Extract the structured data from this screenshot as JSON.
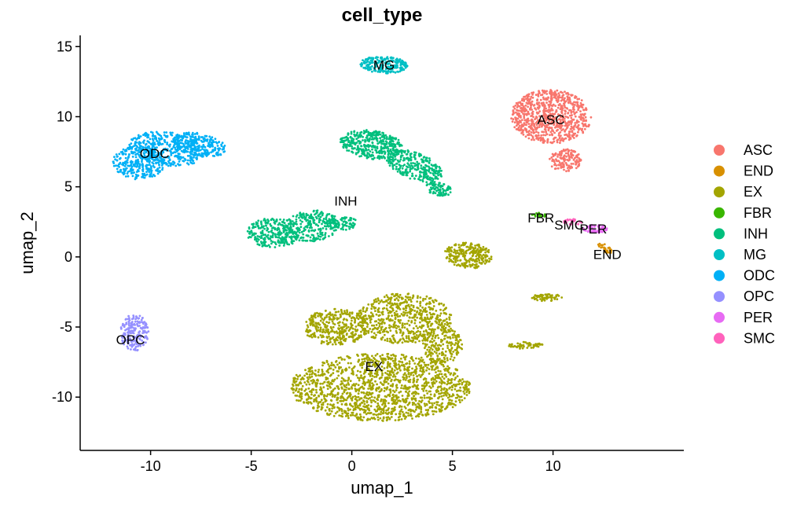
{
  "chart_data": {
    "type": "scatter",
    "title": "cell_type",
    "xlabel": "umap_1",
    "ylabel": "umap_2",
    "xlim": [
      -13.5,
      16.5
    ],
    "ylim": [
      -13.8,
      15.8
    ],
    "xticks": [
      -10,
      -5,
      0,
      5,
      10
    ],
    "yticks": [
      15,
      10,
      5,
      0,
      -5,
      -10
    ],
    "xtick_labels": [
      "-10",
      "-5",
      "0",
      "5",
      "10"
    ],
    "ytick_labels": [
      "15",
      "10",
      "5",
      "0",
      "-5",
      "-10"
    ],
    "grid": false,
    "legend_position": "right",
    "legend": [
      {
        "name": "ASC",
        "color": "#F8766D"
      },
      {
        "name": "END",
        "color": "#D89000"
      },
      {
        "name": "EX",
        "color": "#A3A500"
      },
      {
        "name": "FBR",
        "color": "#39B600"
      },
      {
        "name": "INH",
        "color": "#00BF7D"
      },
      {
        "name": "MG",
        "color": "#00BFC4"
      },
      {
        "name": "ODC",
        "color": "#00B0F6"
      },
      {
        "name": "OPC",
        "color": "#9590FF"
      },
      {
        "name": "PER",
        "color": "#E76BF3"
      },
      {
        "name": "SMC",
        "color": "#FF62BC"
      }
    ],
    "clusters": [
      {
        "name": "ASC",
        "label": {
          "x": 9.9,
          "y": 9.8
        },
        "blobs": [
          {
            "cx": 9.9,
            "cy": 10.0,
            "rx": 2.0,
            "ry": 1.9,
            "rot": -15,
            "n": 800
          },
          {
            "cx": 10.6,
            "cy": 6.9,
            "rx": 0.8,
            "ry": 0.8,
            "rot": -35,
            "n": 150
          }
        ]
      },
      {
        "name": "MG",
        "label": {
          "x": 1.6,
          "y": 13.7
        },
        "blobs": [
          {
            "cx": 1.6,
            "cy": 13.7,
            "rx": 1.2,
            "ry": 0.6,
            "rot": -5,
            "n": 220
          }
        ]
      },
      {
        "name": "ODC",
        "label": {
          "x": -9.8,
          "y": 7.4
        },
        "blobs": [
          {
            "cx": -10.6,
            "cy": 6.7,
            "rx": 1.3,
            "ry": 1.2,
            "rot": 0,
            "n": 300
          },
          {
            "cx": -9.2,
            "cy": 7.7,
            "rx": 1.9,
            "ry": 1.2,
            "rot": -15,
            "n": 380
          },
          {
            "cx": -7.6,
            "cy": 8.0,
            "rx": 1.4,
            "ry": 0.8,
            "rot": -18,
            "n": 240
          }
        ]
      },
      {
        "name": "INH",
        "label": {
          "x": -0.3,
          "y": 4.0
        },
        "blobs": [
          {
            "cx": 1.0,
            "cy": 8.0,
            "rx": 1.6,
            "ry": 1.0,
            "rot": -15,
            "n": 380
          },
          {
            "cx": 3.1,
            "cy": 6.5,
            "rx": 1.6,
            "ry": 0.9,
            "rot": -35,
            "n": 280
          },
          {
            "cx": 4.3,
            "cy": 4.9,
            "rx": 0.7,
            "ry": 0.5,
            "rot": -30,
            "n": 90
          },
          {
            "cx": -3.9,
            "cy": 1.7,
            "rx": 1.3,
            "ry": 1.1,
            "rot": 0,
            "n": 260
          },
          {
            "cx": -2.0,
            "cy": 2.2,
            "rx": 1.4,
            "ry": 1.1,
            "rot": 15,
            "n": 260
          },
          {
            "cx": -0.5,
            "cy": 2.4,
            "rx": 0.8,
            "ry": 0.5,
            "rot": 0,
            "n": 80
          }
        ]
      },
      {
        "name": "EX",
        "label": {
          "x": 1.1,
          "y": -7.8
        },
        "blobs": [
          {
            "cx": 1.4,
            "cy": -9.3,
            "rx": 4.5,
            "ry": 2.4,
            "rot": 0,
            "n": 1500
          },
          {
            "cx": -0.8,
            "cy": -5.0,
            "rx": 1.6,
            "ry": 1.3,
            "rot": 0,
            "n": 350
          },
          {
            "cx": 2.6,
            "cy": -4.4,
            "rx": 2.4,
            "ry": 1.8,
            "rot": 0,
            "n": 600
          },
          {
            "cx": 4.5,
            "cy": -6.3,
            "rx": 1.0,
            "ry": 1.3,
            "rot": 0,
            "n": 200
          },
          {
            "cx": 5.8,
            "cy": 0.1,
            "rx": 1.2,
            "ry": 0.9,
            "rot": -10,
            "n": 260
          },
          {
            "cx": 9.7,
            "cy": -2.9,
            "rx": 0.8,
            "ry": 0.25,
            "rot": 0,
            "n": 60
          },
          {
            "cx": 8.6,
            "cy": -6.3,
            "rx": 0.9,
            "ry": 0.25,
            "rot": 0,
            "n": 60
          }
        ]
      },
      {
        "name": "OPC",
        "label": {
          "x": -11.0,
          "y": -5.9
        },
        "blobs": [
          {
            "cx": -10.8,
            "cy": -5.4,
            "rx": 0.7,
            "ry": 1.3,
            "rot": 0,
            "n": 200
          }
        ]
      },
      {
        "name": "FBR",
        "label": {
          "x": 9.4,
          "y": 2.8
        },
        "blobs": [
          {
            "cx": 9.4,
            "cy": 3.0,
            "rx": 0.5,
            "ry": 0.15,
            "rot": 0,
            "n": 20
          }
        ]
      },
      {
        "name": "SMC",
        "label": {
          "x": 10.8,
          "y": 2.3
        },
        "blobs": [
          {
            "cx": 11.0,
            "cy": 2.5,
            "rx": 0.5,
            "ry": 0.2,
            "rot": 0,
            "n": 25
          }
        ]
      },
      {
        "name": "PER",
        "label": {
          "x": 12.0,
          "y": 2.0
        },
        "blobs": [
          {
            "cx": 12.1,
            "cy": 2.0,
            "rx": 0.6,
            "ry": 0.3,
            "rot": 0,
            "n": 60
          }
        ]
      },
      {
        "name": "END",
        "label": {
          "x": 12.7,
          "y": 0.2
        },
        "blobs": [
          {
            "cx": 12.6,
            "cy": 0.6,
            "rx": 0.5,
            "ry": 0.2,
            "rot": -50,
            "n": 35
          }
        ]
      }
    ]
  }
}
